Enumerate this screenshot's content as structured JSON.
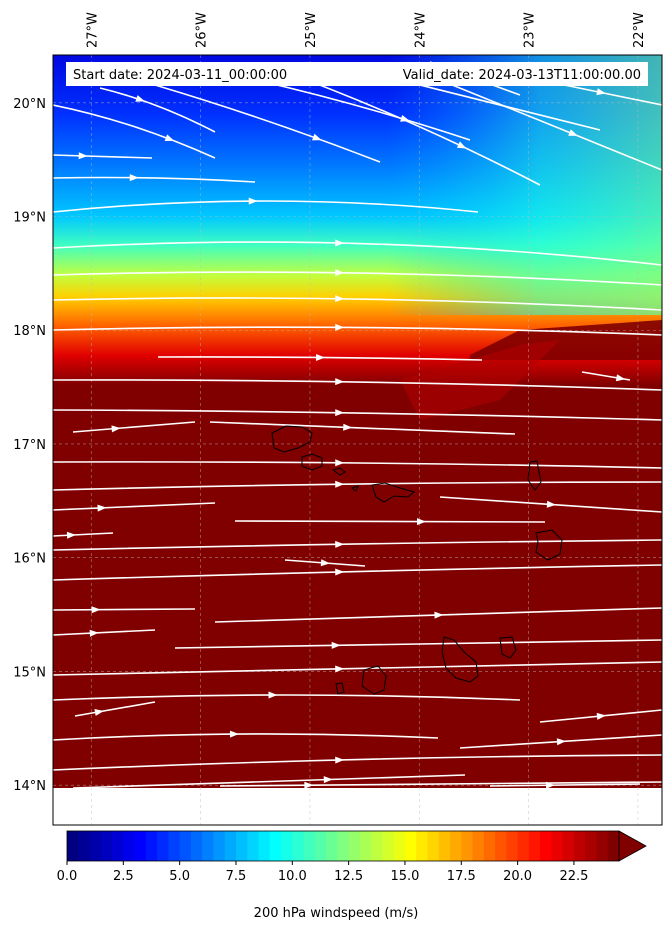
{
  "map": {
    "start_label": "Start date: 2024-03-11_00:00:00",
    "valid_label": "Valid_date: 2024-03-13T11:00:00.00",
    "lon_labels": [
      "27°W",
      "26°W",
      "25°W",
      "24°W",
      "23°W",
      "22°W"
    ],
    "lat_labels": [
      "20°N",
      "19°N",
      "18°N",
      "17°N",
      "16°N",
      "15°N",
      "14°N"
    ],
    "lon_values": [
      -27,
      -26,
      -25,
      -24,
      -23,
      -22
    ],
    "lat_values": [
      20,
      19,
      18,
      17,
      16,
      15,
      14
    ],
    "lon_range": [
      -27.35,
      -21.78
    ],
    "lat_range": [
      13.65,
      20.42
    ],
    "field": "200 hPa windspeed",
    "streamline_color": "#ffffff",
    "coastline_color": "#000000"
  },
  "colorbar": {
    "title": "200 hPa windspeed (m/s)",
    "ticks": [
      "0.0",
      "2.5",
      "5.0",
      "7.5",
      "10.0",
      "12.5",
      "15.0",
      "17.5",
      "20.0",
      "22.5"
    ],
    "tick_values": [
      0,
      2.5,
      5,
      7.5,
      10,
      12.5,
      15,
      17.5,
      20,
      22.5
    ],
    "range": [
      0,
      24.5
    ],
    "colormap": "jet",
    "extend": "max",
    "over_color": "#800000"
  }
}
